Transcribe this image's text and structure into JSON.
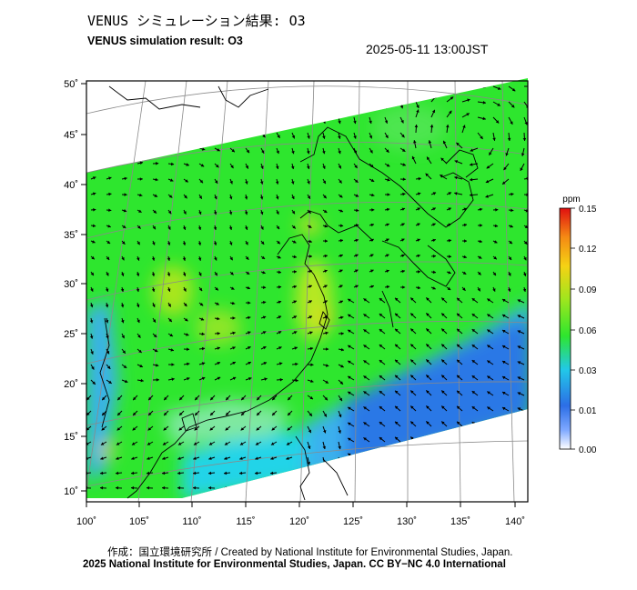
{
  "header": {
    "title_jp": "VENUS シミュレーション結果: O3",
    "title_en": "VENUS simulation result: O3",
    "datetime": "2025-05-11 13:00JST"
  },
  "map": {
    "lon_labels": [
      "100˚",
      "105˚",
      "110˚",
      "115˚",
      "120˚",
      "125˚",
      "130˚",
      "135˚",
      "140˚"
    ],
    "lat_labels": [
      "50˚",
      "45˚",
      "40˚",
      "35˚",
      "30˚",
      "25˚",
      "20˚",
      "15˚",
      "10˚"
    ],
    "field_colors": {
      "background": "#ffffff",
      "green": "#2ee62e",
      "yellow_green": "#a8e61e",
      "yellow": "#f2d21a",
      "cyan": "#22d4e8",
      "light_blue": "#3ab0ee",
      "blue": "#2c78e6"
    }
  },
  "colorbar": {
    "unit": "ppm",
    "ticks": [
      "0.15",
      "0.12",
      "0.09",
      "0.06",
      "0.03",
      "0.01",
      "0.00"
    ]
  },
  "footer": {
    "credit_line1": "作成：国立環境研究所 / Created by National Institute for Environmental Studies, Japan.",
    "credit_line2": "2025 National Institute for Environmental Studies, Japan. CC BY−NC 4.0 International"
  }
}
